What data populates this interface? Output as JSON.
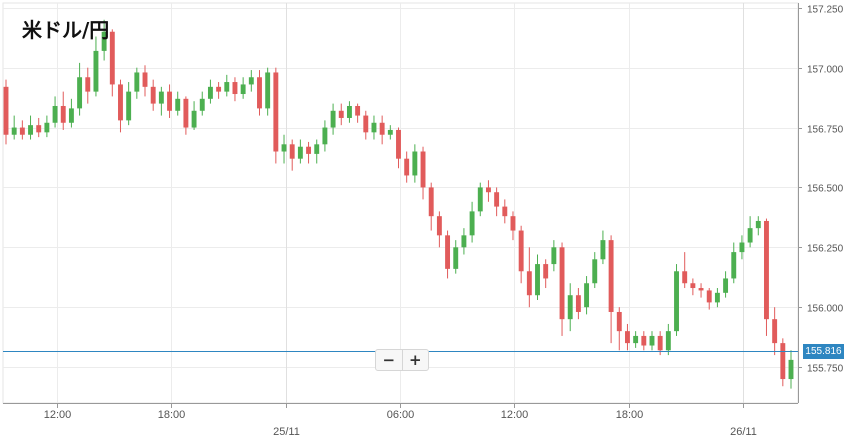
{
  "title": "米ドル/円",
  "zoom": {
    "minus_label": "−",
    "plus_label": "+"
  },
  "current_price": {
    "value": 155.816,
    "label": "155.816",
    "color": "#2e86c1"
  },
  "colors": {
    "up": "#4caf50",
    "down": "#e15b5b"
  },
  "chart_data": {
    "type": "candlestick",
    "title": "米ドル/円",
    "ylim": [
      155.6,
      157.27
    ],
    "yticks": [
      155.75,
      156.0,
      156.25,
      156.5,
      156.75,
      157.0,
      157.25
    ],
    "ytick_labels": [
      "155.750",
      "156.000",
      "156.250",
      "156.500",
      "156.750",
      "157.000",
      "157.250"
    ],
    "xtick_labels": [
      "12:00",
      "18:00",
      "25/11",
      "06:00",
      "12:00",
      "18:00",
      "26/11"
    ],
    "grid": true,
    "candles": [
      [
        156.92,
        156.72,
        156.95,
        156.68
      ],
      [
        156.72,
        156.75,
        156.8,
        156.7
      ],
      [
        156.75,
        156.72,
        156.78,
        156.7
      ],
      [
        156.72,
        156.76,
        156.8,
        156.7
      ],
      [
        156.76,
        156.73,
        156.79,
        156.71
      ],
      [
        156.73,
        156.77,
        156.8,
        156.71
      ],
      [
        156.77,
        156.84,
        156.88,
        156.75
      ],
      [
        156.84,
        156.77,
        156.9,
        156.74
      ],
      [
        156.77,
        156.83,
        156.87,
        156.75
      ],
      [
        156.83,
        156.96,
        157.02,
        156.8
      ],
      [
        156.96,
        156.9,
        157.0,
        156.85
      ],
      [
        156.9,
        157.07,
        157.13,
        156.88
      ],
      [
        157.07,
        157.15,
        157.2,
        157.03
      ],
      [
        157.15,
        156.93,
        157.16,
        156.88
      ],
      [
        156.93,
        156.78,
        156.95,
        156.73
      ],
      [
        156.78,
        156.9,
        156.94,
        156.76
      ],
      [
        156.9,
        156.98,
        157.0,
        156.87
      ],
      [
        156.98,
        156.92,
        157.01,
        156.88
      ],
      [
        156.92,
        156.85,
        156.95,
        156.82
      ],
      [
        156.85,
        156.9,
        156.92,
        156.8
      ],
      [
        156.9,
        156.82,
        156.93,
        156.79
      ],
      [
        156.82,
        156.87,
        156.9,
        156.8
      ],
      [
        156.87,
        156.75,
        156.88,
        156.72
      ],
      [
        156.75,
        156.82,
        156.86,
        156.74
      ],
      [
        156.82,
        156.87,
        156.9,
        156.8
      ],
      [
        156.87,
        156.92,
        156.95,
        156.85
      ],
      [
        156.92,
        156.9,
        156.94,
        156.87
      ],
      [
        156.9,
        156.94,
        156.97,
        156.88
      ],
      [
        156.94,
        156.89,
        156.96,
        156.86
      ],
      [
        156.89,
        156.93,
        156.96,
        156.87
      ],
      [
        156.93,
        156.96,
        156.99,
        156.9
      ],
      [
        156.96,
        156.83,
        156.99,
        156.8
      ],
      [
        156.83,
        156.98,
        157.0,
        156.8
      ],
      [
        156.98,
        156.65,
        157.0,
        156.6
      ],
      [
        156.65,
        156.68,
        156.72,
        156.6
      ],
      [
        156.68,
        156.62,
        156.7,
        156.57
      ],
      [
        156.62,
        156.67,
        156.7,
        156.6
      ],
      [
        156.67,
        156.64,
        156.69,
        156.6
      ],
      [
        156.64,
        156.68,
        156.7,
        156.6
      ],
      [
        156.68,
        156.75,
        156.78,
        156.65
      ],
      [
        156.75,
        156.82,
        156.85,
        156.72
      ],
      [
        156.82,
        156.79,
        156.85,
        156.76
      ],
      [
        156.79,
        156.84,
        156.86,
        156.77
      ],
      [
        156.84,
        156.8,
        156.85,
        156.77
      ],
      [
        156.8,
        156.73,
        156.82,
        156.7
      ],
      [
        156.73,
        156.77,
        156.8,
        156.7
      ],
      [
        156.77,
        156.72,
        156.8,
        156.68
      ],
      [
        156.72,
        156.74,
        156.76,
        156.7
      ],
      [
        156.74,
        156.62,
        156.75,
        156.58
      ],
      [
        156.62,
        156.55,
        156.65,
        156.52
      ],
      [
        156.55,
        156.65,
        156.68,
        156.52
      ],
      [
        156.65,
        156.5,
        156.67,
        156.45
      ],
      [
        156.5,
        156.38,
        156.52,
        156.32
      ],
      [
        156.38,
        156.3,
        156.4,
        156.25
      ],
      [
        156.3,
        156.16,
        156.32,
        156.12
      ],
      [
        156.16,
        156.25,
        156.28,
        156.14
      ],
      [
        156.25,
        156.3,
        156.33,
        156.22
      ],
      [
        156.3,
        156.4,
        156.44,
        156.27
      ],
      [
        156.4,
        156.5,
        156.52,
        156.38
      ],
      [
        156.5,
        156.48,
        156.53,
        156.44
      ],
      [
        156.48,
        156.42,
        156.5,
        156.38
      ],
      [
        156.42,
        156.38,
        156.45,
        156.35
      ],
      [
        156.38,
        156.32,
        156.4,
        156.28
      ],
      [
        156.32,
        156.15,
        156.34,
        156.1
      ],
      [
        156.15,
        156.05,
        156.25,
        156.0
      ],
      [
        156.05,
        156.18,
        156.22,
        156.03
      ],
      [
        156.18,
        156.12,
        156.2,
        156.08
      ],
      [
        156.18,
        156.25,
        156.28,
        156.15
      ],
      [
        156.25,
        155.95,
        156.27,
        155.88
      ],
      [
        155.95,
        156.05,
        156.1,
        155.9
      ],
      [
        156.05,
        155.98,
        156.08,
        155.95
      ],
      [
        156.0,
        156.1,
        156.13,
        155.97
      ],
      [
        156.1,
        156.2,
        156.23,
        156.08
      ],
      [
        156.2,
        156.28,
        156.32,
        156.18
      ],
      [
        156.28,
        155.98,
        156.3,
        155.85
      ],
      [
        155.98,
        155.9,
        156.0,
        155.82
      ],
      [
        155.9,
        155.85,
        155.93,
        155.82
      ],
      [
        155.85,
        155.88,
        155.9,
        155.83
      ],
      [
        155.88,
        155.84,
        155.9,
        155.82
      ],
      [
        155.84,
        155.88,
        155.9,
        155.82
      ],
      [
        155.88,
        155.82,
        155.9,
        155.8
      ],
      [
        155.82,
        155.9,
        155.93,
        155.8
      ],
      [
        155.9,
        156.15,
        156.18,
        155.88
      ],
      [
        156.15,
        156.1,
        156.23,
        156.08
      ],
      [
        156.1,
        156.08,
        156.12,
        156.05
      ],
      [
        156.08,
        156.07,
        156.1,
        156.04
      ],
      [
        156.07,
        156.02,
        156.08,
        155.99
      ],
      [
        156.02,
        156.06,
        156.08,
        156.0
      ],
      [
        156.06,
        156.12,
        156.15,
        156.04
      ],
      [
        156.12,
        156.23,
        156.27,
        156.1
      ],
      [
        156.23,
        156.27,
        156.3,
        156.2
      ],
      [
        156.27,
        156.33,
        156.38,
        156.25
      ],
      [
        156.33,
        156.36,
        156.38,
        156.3
      ],
      [
        156.36,
        155.95,
        156.37,
        155.88
      ],
      [
        155.95,
        155.85,
        156.0,
        155.8
      ],
      [
        155.85,
        155.7,
        155.87,
        155.67
      ],
      [
        155.7,
        155.78,
        155.82,
        155.66
      ]
    ]
  }
}
